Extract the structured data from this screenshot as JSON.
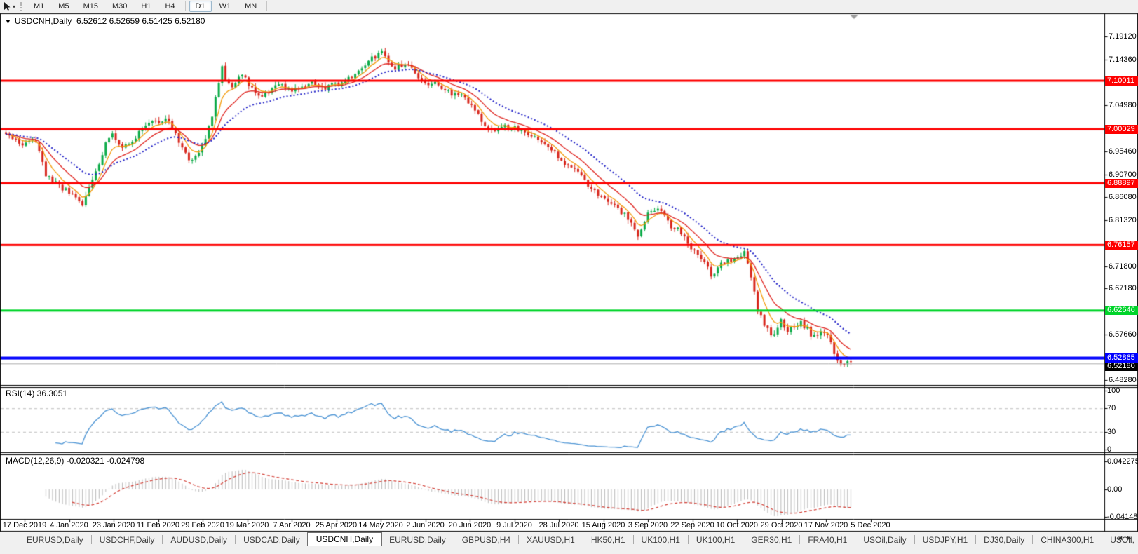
{
  "toolbar": {
    "pointer_tool": "cursor",
    "dropdown_caret": "▾",
    "timeframes": [
      "M1",
      "M5",
      "M15",
      "M30",
      "H1",
      "H4",
      "D1",
      "W1",
      "MN"
    ],
    "active_timeframe": "D1"
  },
  "chart_header": {
    "dropdown_icon": "▼",
    "title": "USDCNH,Daily",
    "ohlc": "6.52612 6.52659 6.51425 6.52180"
  },
  "price_axis": {
    "ticks": [
      "7.19120",
      "7.14360",
      "7.04980",
      "6.95460",
      "6.90700",
      "6.86080",
      "6.81320",
      "6.71800",
      "6.67180",
      "6.57660",
      "6.48280"
    ],
    "price_labels": [
      {
        "text": "7.10011",
        "bg": "#fe0000"
      },
      {
        "text": "7.00029",
        "bg": "#fe0000"
      },
      {
        "text": "6.88897",
        "bg": "#fe0000"
      },
      {
        "text": "6.76157",
        "bg": "#fe0000"
      },
      {
        "text": "6.62646",
        "bg": "#00d42a"
      },
      {
        "text": "6.52180",
        "bg": "#000000",
        "offset": 7
      },
      {
        "text": "6.52865",
        "bg": "#0000fe"
      }
    ]
  },
  "indicators": {
    "rsi": {
      "label": "RSI(14) 36.3051",
      "axis_ticks": [
        "100",
        "70",
        "30",
        "0"
      ],
      "upper_level": 70,
      "lower_level": 30,
      "current": 36.3051
    },
    "macd": {
      "label": "MACD(12,26,9) -0.020321 -0.024798",
      "axis_ticks": [
        "0.042275",
        "0.00",
        "-0.04148"
      ],
      "current": -0.020321,
      "signal_current": -0.024798
    }
  },
  "date_axis": [
    "17 Dec 2019",
    "4 Jan 2020",
    "23 Jan 2020",
    "11 Feb 2020",
    "29 Feb 2020",
    "19 Mar 2020",
    "7 Apr 2020",
    "25 Apr 2020",
    "14 May 2020",
    "2 Jun 2020",
    "20 Jun 2020",
    "9 Jul 2020",
    "28 Jul 2020",
    "15 Aug 2020",
    "3 Sep 2020",
    "22 Sep 2020",
    "10 Oct 2020",
    "29 Oct 2020",
    "17 Nov 2020",
    "5 Dec 2020"
  ],
  "tabs": {
    "items": [
      "EURUSD,Daily",
      "USDCHF,Daily",
      "AUDUSD,Daily",
      "USDCAD,Daily",
      "USDCNH,Daily",
      "EURUSD,Daily",
      "GBPUSD,H4",
      "XAUUSD,H1",
      "HK50,H1",
      "UK100,H1",
      "UK100,H1",
      "GER30,H1",
      "FRA40,H1",
      "USOil,Daily",
      "USDJPY,H1",
      "DJ30,Daily",
      "CHINA300,H1",
      "USOil,"
    ],
    "active_index": 4,
    "scroll_left_icon": "◄",
    "scroll_right_icon": "►"
  },
  "chart_data": {
    "type": "candlestick",
    "symbol": "USDCNH",
    "timeframe": "Daily",
    "current_bar": {
      "open": 6.52612,
      "high": 6.52659,
      "low": 6.51425,
      "close": 6.5218
    },
    "y_axis": {
      "top_price": 7.1912,
      "bottom_price": 6.4828,
      "visible_min": 6.4828,
      "visible_max": 7.1912
    },
    "num_candles": 255,
    "up_color": "#0cab48",
    "down_color": "#d8261c",
    "price_path": [
      [
        0,
        6.99
      ],
      [
        5,
        6.968
      ],
      [
        9,
        6.978
      ],
      [
        12,
        6.905
      ],
      [
        16,
        6.885
      ],
      [
        19,
        6.868
      ],
      [
        23,
        6.845
      ],
      [
        26,
        6.896
      ],
      [
        28,
        6.93
      ],
      [
        30,
        6.97
      ],
      [
        32,
        6.995
      ],
      [
        34,
        6.972
      ],
      [
        35,
        6.958
      ],
      [
        37,
        6.972
      ],
      [
        39,
        6.986
      ],
      [
        42,
        7.01
      ],
      [
        44,
        7.022
      ],
      [
        46,
        7.015
      ],
      [
        48,
        7.026
      ],
      [
        50,
        7.005
      ],
      [
        52,
        6.97
      ],
      [
        55,
        6.936
      ],
      [
        57,
        6.948
      ],
      [
        58,
        6.956
      ],
      [
        60,
        6.985
      ],
      [
        62,
        7.03
      ],
      [
        63,
        7.062
      ],
      [
        65,
        7.13
      ],
      [
        66,
        7.1
      ],
      [
        68,
        7.092
      ],
      [
        70,
        7.108
      ],
      [
        71,
        7.116
      ],
      [
        73,
        7.094
      ],
      [
        74,
        7.082
      ],
      [
        77,
        7.066
      ],
      [
        79,
        7.076
      ],
      [
        82,
        7.09
      ],
      [
        85,
        7.083
      ],
      [
        87,
        7.08
      ],
      [
        90,
        7.088
      ],
      [
        92,
        7.095
      ],
      [
        94,
        7.088
      ],
      [
        96,
        7.085
      ],
      [
        99,
        7.092
      ],
      [
        102,
        7.1
      ],
      [
        104,
        7.108
      ],
      [
        106,
        7.12
      ],
      [
        108,
        7.132
      ],
      [
        110,
        7.146
      ],
      [
        112,
        7.155
      ],
      [
        113,
        7.16
      ],
      [
        115,
        7.14
      ],
      [
        116,
        7.126
      ],
      [
        118,
        7.13
      ],
      [
        121,
        7.136
      ],
      [
        123,
        7.118
      ],
      [
        125,
        7.1
      ],
      [
        127,
        7.092
      ],
      [
        129,
        7.096
      ],
      [
        131,
        7.086
      ],
      [
        133,
        7.076
      ],
      [
        135,
        7.07
      ],
      [
        137,
        7.071
      ],
      [
        139,
        7.055
      ],
      [
        142,
        7.03
      ],
      [
        144,
        7.01
      ],
      [
        146,
        6.996
      ],
      [
        148,
        7.0
      ],
      [
        150,
        7.006
      ],
      [
        152,
        7.002
      ],
      [
        155,
        7.0
      ],
      [
        157,
        6.99
      ],
      [
        160,
        6.976
      ],
      [
        162,
        6.966
      ],
      [
        164,
        6.956
      ],
      [
        166,
        6.944
      ],
      [
        168,
        6.93
      ],
      [
        170,
        6.922
      ],
      [
        172,
        6.915
      ],
      [
        174,
        6.895
      ],
      [
        176,
        6.876
      ],
      [
        178,
        6.868
      ],
      [
        180,
        6.86
      ],
      [
        182,
        6.848
      ],
      [
        184,
        6.836
      ],
      [
        186,
        6.824
      ],
      [
        187,
        6.815
      ],
      [
        189,
        6.79
      ],
      [
        190,
        6.78
      ],
      [
        192,
        6.806
      ],
      [
        193,
        6.824
      ],
      [
        195,
        6.836
      ],
      [
        196,
        6.84
      ],
      [
        198,
        6.82
      ],
      [
        200,
        6.8
      ],
      [
        202,
        6.792
      ],
      [
        203,
        6.786
      ],
      [
        205,
        6.768
      ],
      [
        206,
        6.756
      ],
      [
        208,
        6.744
      ],
      [
        209,
        6.736
      ],
      [
        211,
        6.716
      ],
      [
        212,
        6.7
      ],
      [
        214,
        6.712
      ],
      [
        215,
        6.72
      ],
      [
        217,
        6.728
      ],
      [
        219,
        6.736
      ],
      [
        221,
        6.742
      ],
      [
        222,
        6.746
      ],
      [
        224,
        6.7
      ],
      [
        226,
        6.626
      ],
      [
        228,
        6.6
      ],
      [
        230,
        6.572
      ],
      [
        232,
        6.59
      ],
      [
        233,
        6.606
      ],
      [
        235,
        6.586
      ],
      [
        237,
        6.592
      ],
      [
        239,
        6.6
      ],
      [
        241,
        6.588
      ],
      [
        242,
        6.576
      ],
      [
        244,
        6.58
      ],
      [
        245,
        6.586
      ],
      [
        247,
        6.572
      ],
      [
        248,
        6.56
      ],
      [
        250,
        6.522
      ],
      [
        252,
        6.512
      ],
      [
        254,
        6.5218
      ]
    ],
    "moving_averages": [
      {
        "period": 6,
        "color": "#f49b0b",
        "style": "solid"
      },
      {
        "period": 13,
        "color": "#e02520",
        "style": "solid"
      },
      {
        "period": 26,
        "color": "#2424c8",
        "style": "dotted"
      }
    ],
    "horizontal_lines": [
      {
        "price": 7.10011,
        "color": "#fe0000",
        "width": 3
      },
      {
        "price": 7.00029,
        "color": "#fe0000",
        "width": 3
      },
      {
        "price": 6.88897,
        "color": "#fe0000",
        "width": 3
      },
      {
        "price": 6.76157,
        "color": "#fe0000",
        "width": 3
      },
      {
        "price": 6.62646,
        "color": "#00d42a",
        "width": 3
      },
      {
        "price": 6.52865,
        "color": "#0000fe",
        "width": 4
      }
    ],
    "current_price_line": {
      "price": 6.5218,
      "color": "#adadad"
    },
    "rsi": {
      "period": 14,
      "color": "#4a93d4",
      "axis_max": 100,
      "axis_min": 0
    },
    "macd": {
      "fast": 12,
      "slow": 26,
      "signal": 9,
      "hist_color": "#b9b9b9",
      "signal_color": "#d23b32",
      "axis_max": 0.042275,
      "axis_min": -0.04148
    }
  }
}
